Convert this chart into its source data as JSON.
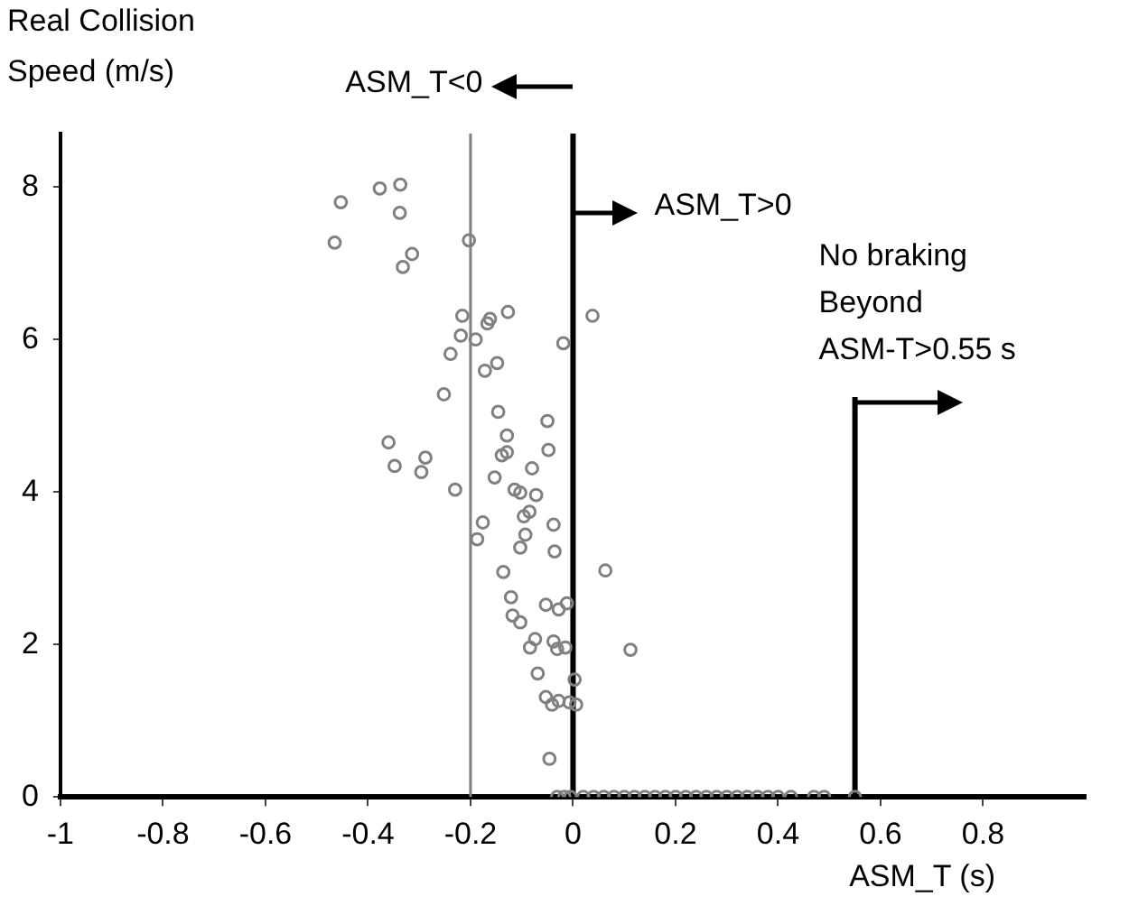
{
  "chart_data": {
    "type": "scatter",
    "xlabel": "ASM_T (s)",
    "ylabel": "Real Collision Speed (m/s)",
    "xlim": [
      -1,
      1
    ],
    "xticks": [
      -1,
      -0.8,
      -0.6,
      -0.4,
      -0.2,
      0,
      0.2,
      0.4,
      0.6,
      0.8
    ],
    "ylim": [
      0,
      8.7
    ],
    "yticks": [
      0,
      2,
      4,
      6,
      8
    ],
    "grid": false,
    "legend": false,
    "marker": "circle",
    "series": [
      {
        "color": "#808080",
        "x": [
          -0.453,
          -0.377,
          -0.337,
          -0.338,
          -0.465,
          -0.203,
          -0.314,
          -0.332,
          -0.216,
          -0.162,
          -0.167,
          -0.127,
          0.038,
          -0.219,
          -0.19,
          -0.019,
          -0.239,
          -0.172,
          -0.148,
          -0.252,
          -0.146,
          -0.05,
          -0.129,
          -0.36,
          -0.288,
          -0.348,
          -0.296,
          -0.139,
          -0.129,
          -0.048,
          -0.08,
          -0.23,
          -0.153,
          -0.114,
          -0.103,
          -0.072,
          -0.085,
          -0.096,
          -0.176,
          -0.038,
          -0.187,
          -0.093,
          -0.103,
          -0.036,
          -0.136,
          0.063,
          -0.121,
          -0.053,
          -0.028,
          -0.012,
          -0.118,
          -0.103,
          -0.074,
          -0.084,
          -0.038,
          -0.031,
          -0.015,
          0.112,
          -0.069,
          0.003,
          -0.053,
          -0.041,
          -0.028,
          -0.007,
          0.006,
          -0.046,
          -0.031,
          -0.017,
          -0.005,
          0.02,
          0.04,
          0.06,
          0.08,
          0.1,
          0.12,
          0.14,
          0.16,
          0.18,
          0.2,
          0.22,
          0.24,
          0.26,
          0.28,
          0.3,
          0.32,
          0.34,
          0.36,
          0.38,
          0.4,
          0.425,
          0.47,
          0.49,
          0.55
        ],
        "values": [
          7.8,
          7.98,
          8.03,
          7.66,
          7.27,
          7.3,
          7.12,
          6.95,
          6.31,
          6.27,
          6.21,
          6.36,
          6.31,
          6.05,
          6,
          5.95,
          5.81,
          5.59,
          5.69,
          5.28,
          5.05,
          4.93,
          4.74,
          4.65,
          4.45,
          4.34,
          4.26,
          4.48,
          4.52,
          4.55,
          4.31,
          4.03,
          4.19,
          4.03,
          3.99,
          3.96,
          3.74,
          3.68,
          3.6,
          3.57,
          3.38,
          3.44,
          3.27,
          3.22,
          2.95,
          2.97,
          2.62,
          2.52,
          2.46,
          2.54,
          2.38,
          2.29,
          2.07,
          1.96,
          2.04,
          1.94,
          1.96,
          1.93,
          1.62,
          1.54,
          1.31,
          1.21,
          1.26,
          1.24,
          1.21,
          0.5,
          0,
          0,
          0,
          0,
          0,
          0,
          0,
          0,
          0,
          0,
          0,
          0,
          0,
          0,
          0,
          0,
          0,
          0,
          0,
          0,
          0,
          0,
          0,
          0,
          0,
          0,
          0
        ]
      }
    ],
    "ref_lines": [
      {
        "axis": "x",
        "value": -0.2,
        "color": "#808080"
      },
      {
        "axis": "x",
        "value": 0,
        "color": "#000000"
      },
      {
        "axis": "x",
        "value": 0.55,
        "color": "#000000",
        "label": "No braking\nBeyond\nASM-T>0.55 s"
      }
    ],
    "annotations": [
      "ASM_T<0",
      "ASM_T>0"
    ]
  }
}
